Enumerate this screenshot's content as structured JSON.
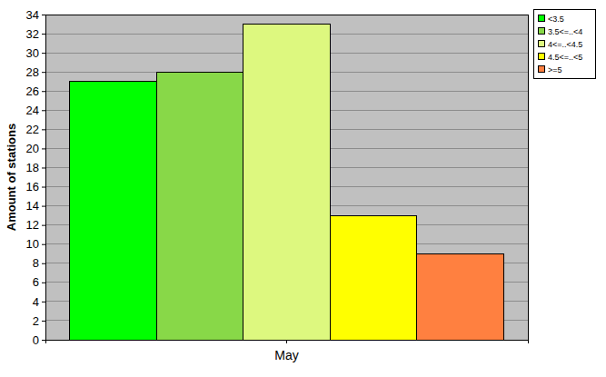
{
  "chart_data": {
    "type": "bar",
    "y_label": "Amount of stations",
    "categories": [
      "May"
    ],
    "series": [
      {
        "name": "<3.5",
        "color": "#00ff00",
        "values": [
          27
        ]
      },
      {
        "name": "3.5<=..<4",
        "color": "#88d848",
        "values": [
          28
        ]
      },
      {
        "name": "4<=..<4.5",
        "color": "#ddf87f",
        "values": [
          33
        ]
      },
      {
        "name": "4.5<=..<5",
        "color": "#ffff00",
        "values": [
          13
        ]
      },
      {
        "name": ">=5",
        "color": "#ff8040",
        "values": [
          9
        ]
      }
    ],
    "ylim": [
      0,
      34
    ],
    "yticks": [
      0,
      2,
      4,
      6,
      8,
      10,
      12,
      14,
      16,
      18,
      20,
      22,
      24,
      26,
      28,
      30,
      32,
      34
    ],
    "grid": true,
    "legend": "top-right"
  }
}
